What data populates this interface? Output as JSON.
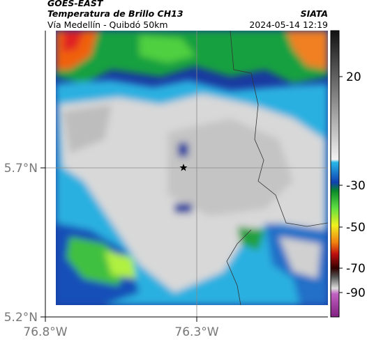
{
  "header": {
    "source": "GOES-EAST",
    "title": "Temperatura de Brillo CH13",
    "subtitle": "Vía Medellín - Quibdó 50km",
    "agency": "SIATA",
    "datetime": "2024-05-14 12:19"
  },
  "map": {
    "lat_labels": [
      "5.7°N",
      "5.2°N"
    ],
    "lon_labels": [
      "76.8°W",
      "76.3°W"
    ]
  },
  "colorbar": {
    "ticks": [
      "20",
      "-30",
      "-50",
      "-70",
      "-90"
    ]
  }
}
